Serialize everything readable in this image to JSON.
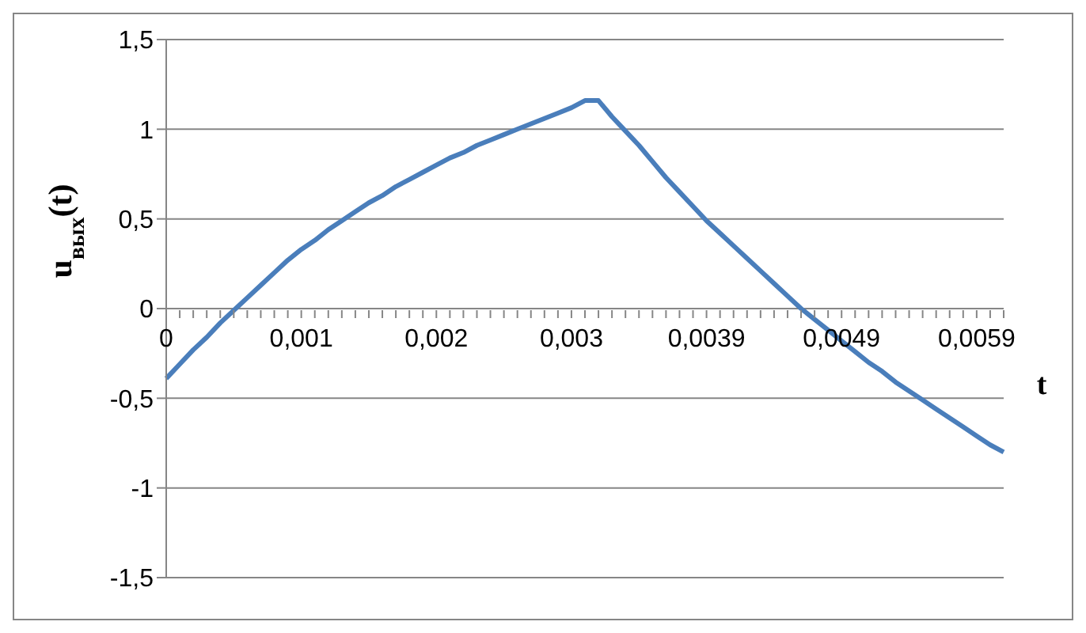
{
  "chart_data": {
    "type": "line",
    "xlabel": "t",
    "ylabel": "u$_{вых}$(t)",
    "categories": [
      "0",
      null,
      null,
      null,
      null,
      null,
      null,
      null,
      null,
      null,
      "0,001",
      null,
      null,
      null,
      null,
      null,
      null,
      null,
      null,
      null,
      "0,002",
      null,
      null,
      null,
      null,
      null,
      null,
      null,
      null,
      null,
      "0,003",
      null,
      null,
      null,
      null,
      null,
      null,
      null,
      null,
      null,
      "0,0039",
      null,
      null,
      null,
      null,
      null,
      null,
      null,
      null,
      null,
      "0,0049",
      null,
      null,
      null,
      null,
      null,
      null,
      null,
      null,
      null,
      "0,0059",
      null,
      null
    ],
    "series": [
      {
        "color": "#4a7ebb",
        "values": [
          -0.39,
          -0.31,
          -0.23,
          -0.16,
          -0.08,
          -0.01,
          0.06,
          0.13,
          0.2,
          0.27,
          0.33,
          0.38,
          0.44,
          0.49,
          0.54,
          0.59,
          0.63,
          0.68,
          0.72,
          0.76,
          0.8,
          0.84,
          0.87,
          0.91,
          0.94,
          0.97,
          1.0,
          1.03,
          1.06,
          1.09,
          1.12,
          1.16,
          1.16,
          1.07,
          0.99,
          0.91,
          0.82,
          0.73,
          0.65,
          0.57,
          0.49,
          0.42,
          0.35,
          0.28,
          0.21,
          0.14,
          0.07,
          0.0,
          -0.06,
          -0.12,
          -0.18,
          -0.24,
          -0.3,
          -0.35,
          -0.41,
          -0.46,
          -0.51,
          -0.56,
          -0.61,
          -0.66,
          -0.71,
          -0.76,
          -0.8
        ]
      }
    ],
    "ylim": [
      -1.5,
      1.5
    ],
    "yticks": [
      {
        "value": -1.5,
        "label": "-1,5"
      },
      -1,
      {
        "value": -0.5,
        "label": "-0,5"
      },
      0,
      {
        "value": 0.5,
        "label": "0,5"
      },
      1,
      {
        "value": 1.5,
        "label": "1,5"
      }
    ],
    "grid": "y",
    "legend": false,
    "marker": "none",
    "line_style": "solid"
  }
}
